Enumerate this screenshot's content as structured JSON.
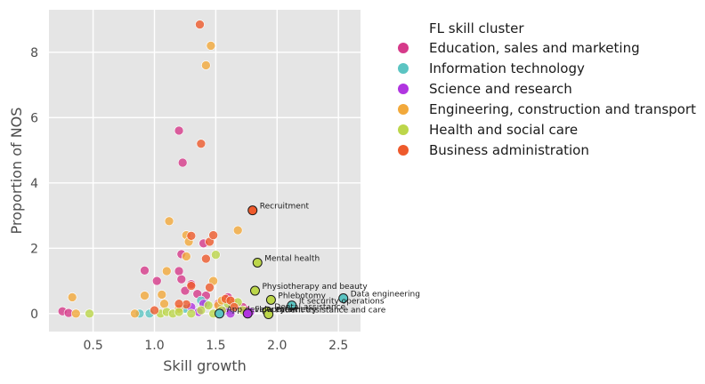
{
  "chart_data": {
    "type": "scatter",
    "title": "",
    "xlabel": "Skill growth",
    "ylabel": "Proportion of NOS",
    "xlim": [
      0.14,
      2.68
    ],
    "ylim": [
      -0.55,
      9.3
    ],
    "xticks": [
      0.5,
      1.0,
      1.5,
      2.0,
      2.5
    ],
    "xtick_labels": [
      "0.5",
      "1.0",
      "1.5",
      "2.0",
      "2.5"
    ],
    "yticks": [
      0,
      2,
      4,
      6,
      8
    ],
    "ytick_labels": [
      "0",
      "2",
      "4",
      "6",
      "8"
    ],
    "grid": true,
    "legend_title": "FL skill cluster",
    "legend_position": "outside-right",
    "series": [
      {
        "name": "Education, sales and marketing",
        "color": "#d63a8a",
        "points": [
          [
            0.25,
            0.07
          ],
          [
            0.3,
            0.02
          ],
          [
            0.92,
            1.32
          ],
          [
            1.02,
            1.0
          ],
          [
            1.2,
            5.6
          ],
          [
            1.23,
            4.62
          ],
          [
            1.2,
            1.3
          ],
          [
            1.22,
            1.05
          ],
          [
            1.22,
            1.82
          ],
          [
            1.3,
            0.9
          ],
          [
            1.4,
            2.15
          ],
          [
            1.42,
            0.55
          ],
          [
            1.52,
            0.3
          ],
          [
            1.6,
            0.5
          ],
          [
            1.72,
            0.2
          ],
          [
            1.75,
            0.1
          ],
          [
            1.25,
            0.7
          ],
          [
            1.35,
            0.6
          ]
        ]
      },
      {
        "name": "Information technology",
        "color": "#5bc4c2",
        "points": [
          [
            0.88,
            0.0
          ],
          [
            0.96,
            0.0
          ],
          [
            1.38,
            0.4
          ],
          [
            1.42,
            0.3
          ],
          [
            1.55,
            0.2
          ],
          [
            1.62,
            0.1
          ],
          [
            1.25,
            0.15
          ]
        ]
      },
      {
        "name": "Science and research",
        "color": "#b035e0",
        "points": [
          [
            1.36,
            0.05
          ],
          [
            1.4,
            0.3
          ],
          [
            1.58,
            0.1
          ],
          [
            1.62,
            0.0
          ],
          [
            1.78,
            0.05
          ],
          [
            1.3,
            0.2
          ]
        ]
      },
      {
        "name": "Engineering, construction and transport",
        "color": "#f2a93b",
        "points": [
          [
            0.33,
            0.5
          ],
          [
            0.36,
            0.0
          ],
          [
            0.84,
            0.0
          ],
          [
            0.92,
            0.55
          ],
          [
            1.06,
            0.58
          ],
          [
            1.1,
            1.3
          ],
          [
            1.12,
            2.83
          ],
          [
            1.26,
            1.75
          ],
          [
            1.26,
            2.4
          ],
          [
            1.28,
            2.2
          ],
          [
            1.42,
            7.6
          ],
          [
            1.46,
            8.2
          ],
          [
            1.48,
            1.0
          ],
          [
            1.52,
            0.25
          ],
          [
            1.68,
            2.55
          ],
          [
            1.08,
            0.3
          ],
          [
            1.55,
            0.4
          ],
          [
            1.2,
            0.15
          ],
          [
            1.64,
            0.35
          ]
        ]
      },
      {
        "name": "Health and social care",
        "color": "#bcd64a",
        "points": [
          [
            0.47,
            0.0
          ],
          [
            1.05,
            0.0
          ],
          [
            1.1,
            0.05
          ],
          [
            1.15,
            0.0
          ],
          [
            1.2,
            0.05
          ],
          [
            1.38,
            0.1
          ],
          [
            1.44,
            0.25
          ],
          [
            1.5,
            1.8
          ],
          [
            1.6,
            0.3
          ],
          [
            1.68,
            0.35
          ],
          [
            1.72,
            0.1
          ],
          [
            1.3,
            0.0
          ],
          [
            1.48,
            0.0
          ],
          [
            1.55,
            0.1
          ]
        ]
      },
      {
        "name": "Business administration",
        "color": "#ee5a2c",
        "points": [
          [
            1.37,
            8.85
          ],
          [
            1.38,
            5.2
          ],
          [
            1.42,
            1.68
          ],
          [
            1.45,
            2.2
          ],
          [
            1.48,
            2.4
          ],
          [
            1.3,
            2.38
          ],
          [
            1.26,
            0.28
          ],
          [
            1.2,
            0.3
          ],
          [
            1.3,
            0.85
          ],
          [
            1.45,
            0.8
          ],
          [
            1.58,
            0.45
          ],
          [
            1.62,
            0.4
          ],
          [
            1.65,
            0.2
          ],
          [
            1.0,
            0.1
          ]
        ]
      }
    ],
    "annotated_points": [
      {
        "label": "Recruitment",
        "x": 1.8,
        "y": 3.16,
        "color": "#ee5a2c"
      },
      {
        "label": "Mental health",
        "x": 1.84,
        "y": 1.56,
        "color": "#bcd64a"
      },
      {
        "label": "Physiotherapy and beauty",
        "x": 1.82,
        "y": 0.7,
        "color": "#bcd64a"
      },
      {
        "label": "Phlebotomy",
        "x": 1.95,
        "y": 0.42,
        "color": "#bcd64a"
      },
      {
        "label": "Data engineering",
        "x": 2.54,
        "y": 0.47,
        "color": "#5bc4c2"
      },
      {
        "label": "It security operations",
        "x": 2.12,
        "y": 0.25,
        "color": "#5bc4c2"
      },
      {
        "label": "Dental assistance",
        "x": 1.92,
        "y": 0.07,
        "color": "#bcd64a"
      },
      {
        "label": "Patient assistance and care",
        "x": 1.93,
        "y": -0.02,
        "color": "#bcd64a"
      },
      {
        "label": "App development",
        "x": 1.53,
        "y": 0.0,
        "color": "#5bc4c2"
      },
      {
        "label": "Flow cytometry",
        "x": 1.76,
        "y": 0.0,
        "color": "#b035e0"
      }
    ]
  }
}
